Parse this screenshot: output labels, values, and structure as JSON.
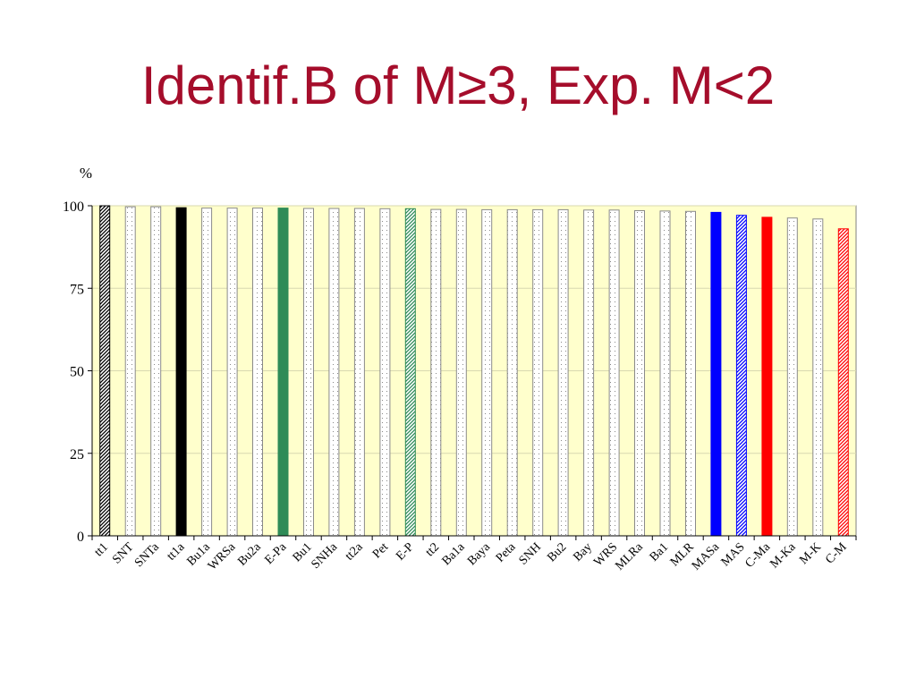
{
  "slide": {
    "title": "Identif.B of M≥3, Exp. M<2"
  },
  "chart_data": {
    "type": "bar",
    "ylabel": "%",
    "ylim": [
      0,
      100
    ],
    "yticks": [
      0,
      25,
      50,
      75,
      100
    ],
    "grid": true,
    "plot_background": "#ffffcc",
    "categories": [
      "tt1",
      "SNT",
      "SNTa",
      "tt1a",
      "Bu1a",
      "WRSa",
      "Bu2a",
      "E-Pa",
      "Bu1",
      "SNHa",
      "tt2a",
      "Pet",
      "E-P",
      "tt2",
      "Ba1a",
      "Baya",
      "Peta",
      "SNH",
      "Bu2",
      "Bay",
      "WRS",
      "MLRa",
      "Ba1",
      "MLR",
      "MASa",
      "MAS",
      "C-Ma",
      "M-Ka",
      "M-K",
      "C-M"
    ],
    "values": [
      100,
      99.7,
      99.7,
      99.4,
      99.3,
      99.3,
      99.3,
      99.3,
      99.2,
      99.2,
      99.2,
      99.1,
      99.1,
      98.9,
      98.9,
      98.8,
      98.8,
      98.8,
      98.8,
      98.7,
      98.7,
      98.5,
      98.4,
      98.3,
      98.0,
      97.1,
      96.5,
      96.3,
      96.0,
      93.0
    ],
    "bar_styles": [
      {
        "fill": "hatch",
        "color": "#000000"
      },
      {
        "fill": "dots",
        "color": "#888888"
      },
      {
        "fill": "dots",
        "color": "#888888"
      },
      {
        "fill": "solid",
        "color": "#000000"
      },
      {
        "fill": "dots",
        "color": "#888888"
      },
      {
        "fill": "dots",
        "color": "#888888"
      },
      {
        "fill": "dots",
        "color": "#888888"
      },
      {
        "fill": "solid",
        "color": "#2e8b57"
      },
      {
        "fill": "dots",
        "color": "#888888"
      },
      {
        "fill": "dots",
        "color": "#888888"
      },
      {
        "fill": "dots",
        "color": "#888888"
      },
      {
        "fill": "dots",
        "color": "#888888"
      },
      {
        "fill": "hatch",
        "color": "#2e8b57"
      },
      {
        "fill": "dots",
        "color": "#888888"
      },
      {
        "fill": "dots",
        "color": "#888888"
      },
      {
        "fill": "dots",
        "color": "#888888"
      },
      {
        "fill": "dots",
        "color": "#888888"
      },
      {
        "fill": "dots",
        "color": "#888888"
      },
      {
        "fill": "dots",
        "color": "#888888"
      },
      {
        "fill": "dots",
        "color": "#888888"
      },
      {
        "fill": "dots",
        "color": "#888888"
      },
      {
        "fill": "dots",
        "color": "#888888"
      },
      {
        "fill": "dots",
        "color": "#888888"
      },
      {
        "fill": "dots",
        "color": "#888888"
      },
      {
        "fill": "solid",
        "color": "#0000ff"
      },
      {
        "fill": "hatch",
        "color": "#0000ff"
      },
      {
        "fill": "solid",
        "color": "#ff0000"
      },
      {
        "fill": "dots",
        "color": "#888888"
      },
      {
        "fill": "dots",
        "color": "#888888"
      },
      {
        "fill": "hatch",
        "color": "#ff0000"
      }
    ]
  }
}
